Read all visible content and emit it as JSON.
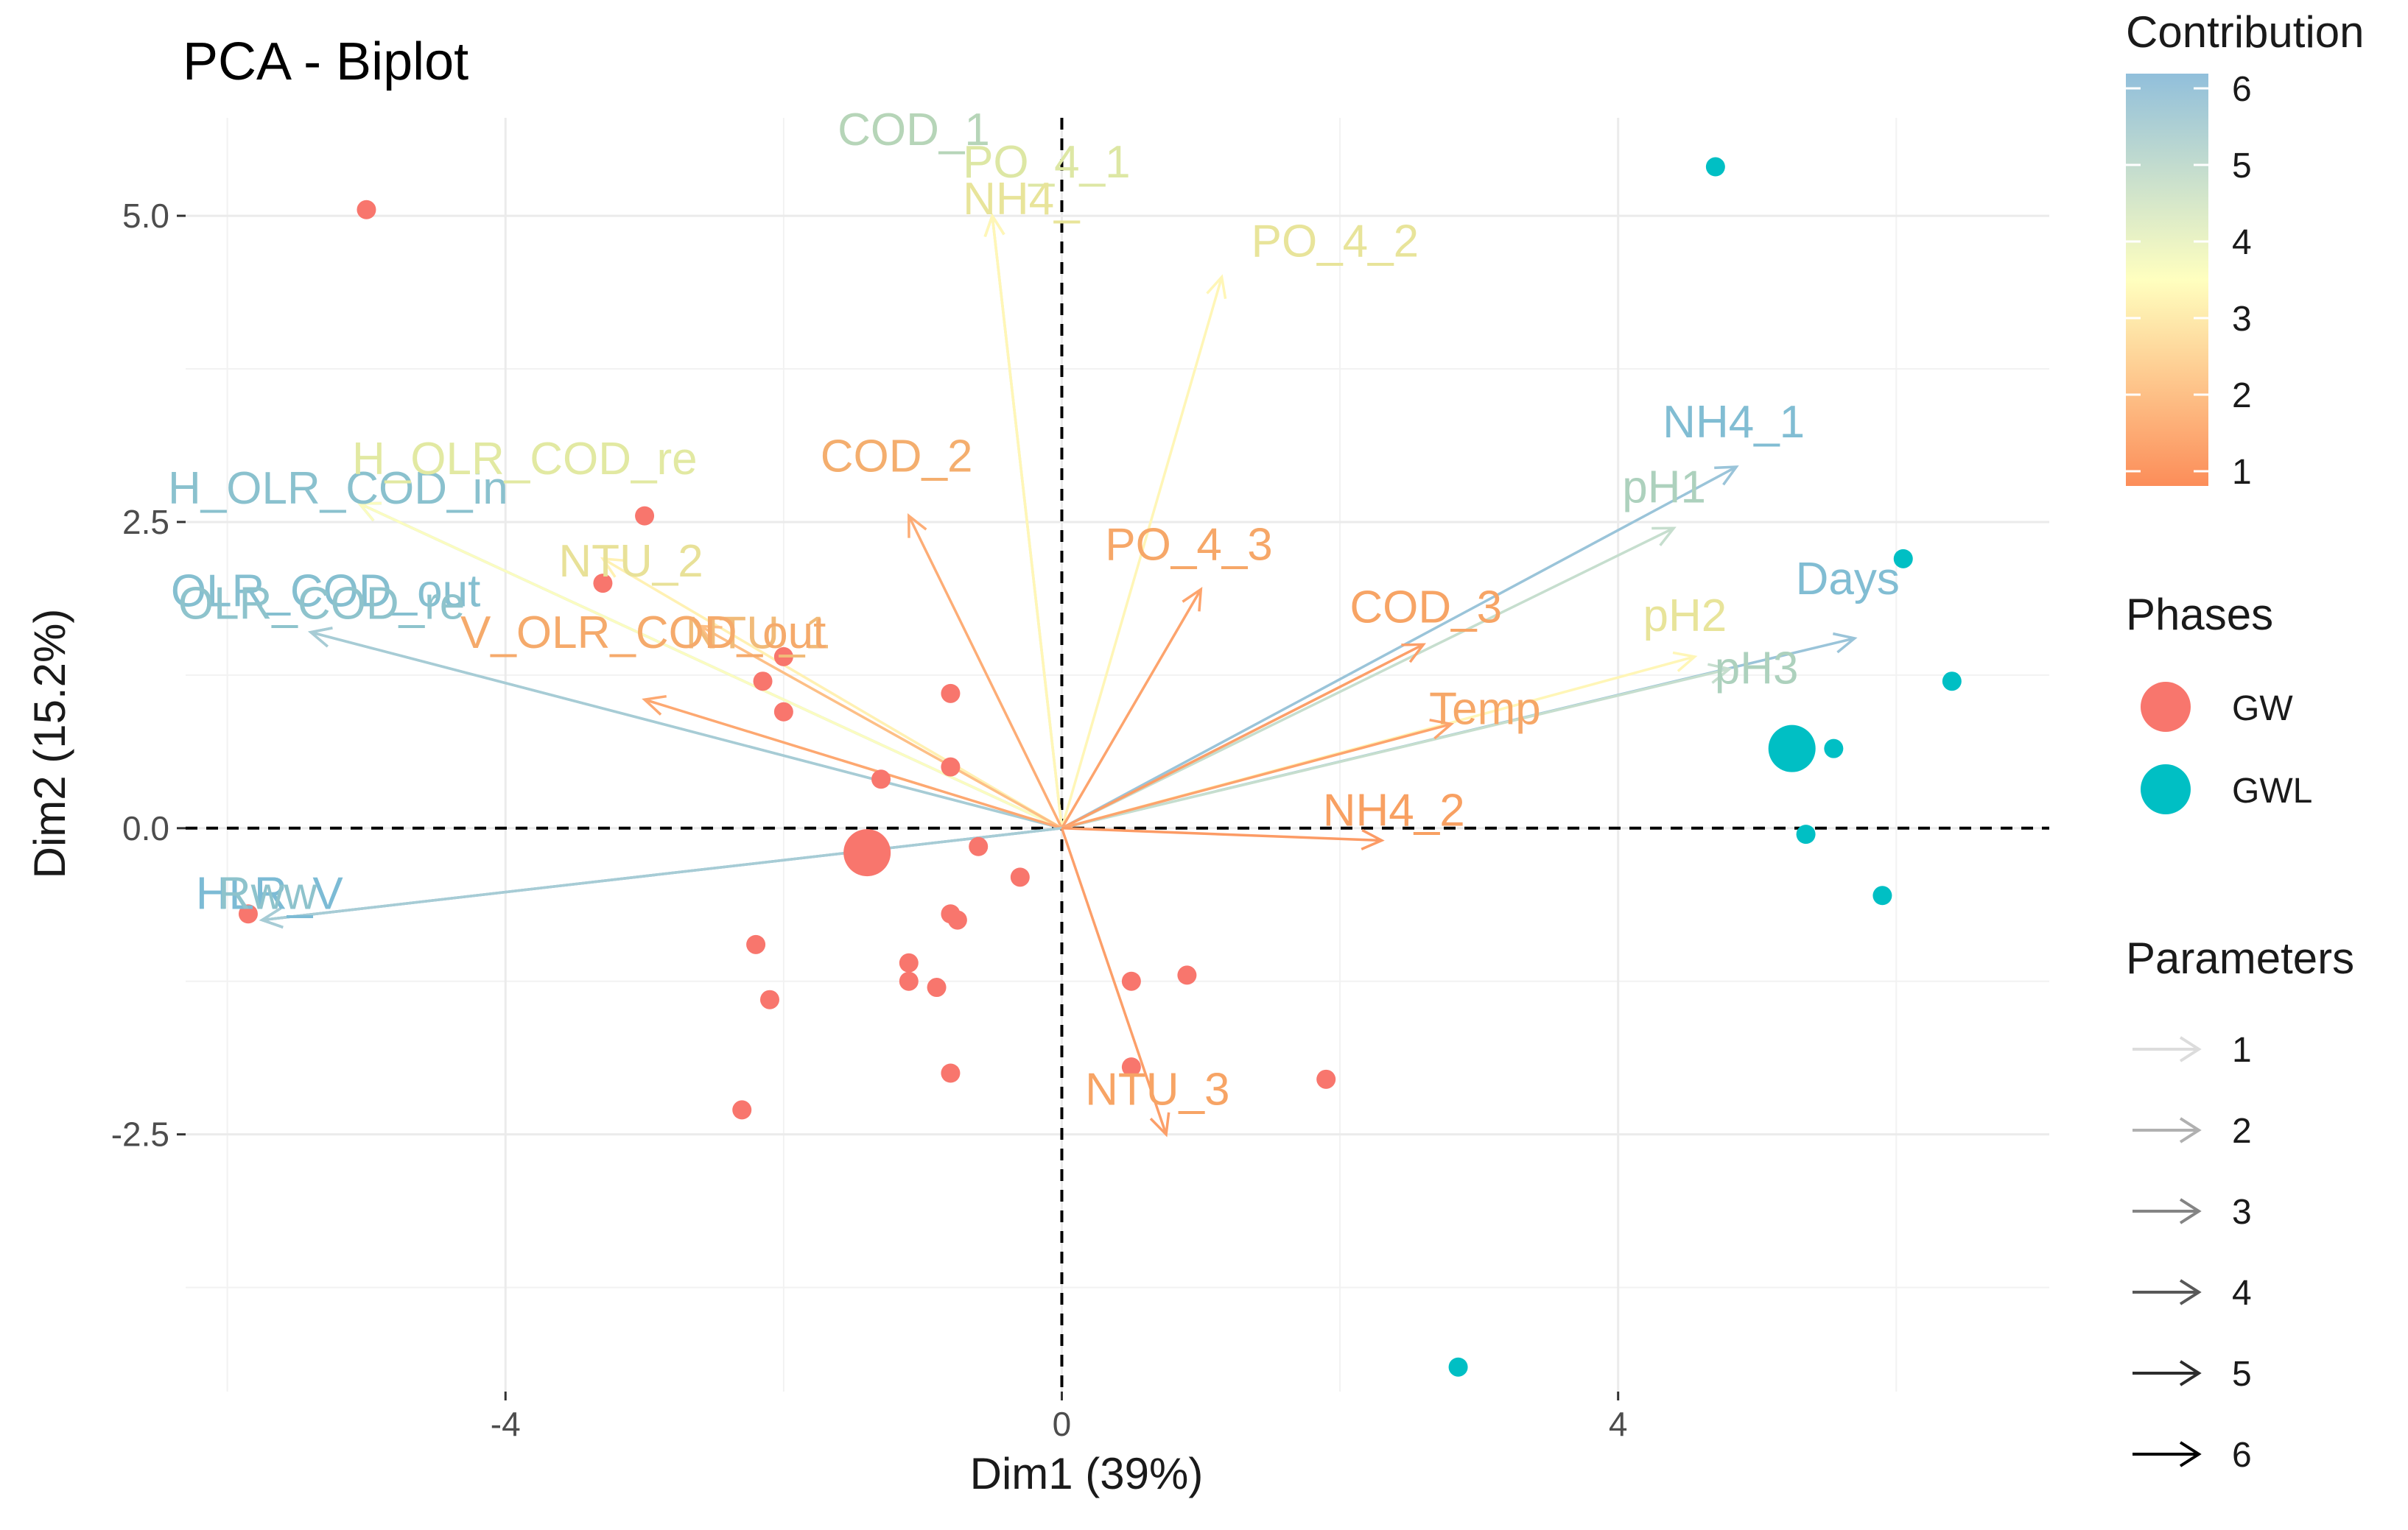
{
  "chart_data": {
    "type": "scatter",
    "subtype": "pca-biplot",
    "title": "PCA - Biplot",
    "xlabel": "Dim1 (39%)",
    "ylabel": "Dim2 (15.2%)",
    "xlim": [
      -6.3,
      7.1
    ],
    "ylim": [
      -4.6,
      5.8
    ],
    "x_ticks": [
      -4,
      0,
      4
    ],
    "x_tick_labels": [
      "-4",
      "0",
      "4"
    ],
    "y_ticks": [
      -2.5,
      0,
      2.5,
      5
    ],
    "y_tick_labels": [
      "-2.5",
      "0.0",
      "2.5",
      "5.0"
    ],
    "grid": true,
    "reference_lines": [
      "x=0 dashed",
      "y=0 dashed"
    ],
    "colors": {
      "GW": "#f8766d",
      "GWL": "#00bfc4",
      "contribution_low": "#fc8d59",
      "contribution_mid": "#ffffbf",
      "contribution_high": "#91bfdb"
    },
    "groups": [
      {
        "name": "GW",
        "color": "#f8766d",
        "centroid": [
          -1.4,
          -0.2
        ],
        "points": [
          [
            -5.0,
            5.05
          ],
          [
            -3.0,
            2.55
          ],
          [
            -3.3,
            2.0
          ],
          [
            -2.0,
            1.4
          ],
          [
            -2.15,
            1.2
          ],
          [
            -2.0,
            0.95
          ],
          [
            -0.8,
            1.1
          ],
          [
            -1.3,
            0.4
          ],
          [
            -0.8,
            0.5
          ],
          [
            -0.6,
            -0.15
          ],
          [
            -0.3,
            -0.4
          ],
          [
            -0.8,
            -0.7
          ],
          [
            -0.75,
            -0.75
          ],
          [
            -1.1,
            -1.1
          ],
          [
            -1.1,
            -1.25
          ],
          [
            -0.9,
            -1.3
          ],
          [
            -2.2,
            -0.95
          ],
          [
            -2.1,
            -1.4
          ],
          [
            -0.8,
            -2.0
          ],
          [
            -2.3,
            -2.3
          ],
          [
            0.5,
            -1.25
          ],
          [
            0.9,
            -1.2
          ],
          [
            0.5,
            -1.95
          ],
          [
            1.9,
            -2.05
          ],
          [
            -5.85,
            -0.7
          ]
        ]
      },
      {
        "name": "GWL",
        "color": "#00bfc4",
        "centroid": [
          5.25,
          0.65
        ],
        "points": [
          [
            4.7,
            5.4
          ],
          [
            6.05,
            2.2
          ],
          [
            6.4,
            1.2
          ],
          [
            5.55,
            0.65
          ],
          [
            5.35,
            -0.05
          ],
          [
            5.9,
            -0.55
          ],
          [
            2.85,
            -4.4
          ]
        ]
      }
    ],
    "variables": [
      {
        "name": "COD_1",
        "x": -0.5,
        "y": 5.0,
        "contribution": 4.6
      },
      {
        "name": "PO_4_1",
        "x": -0.5,
        "y": 5.0,
        "contribution": 3.7
      },
      {
        "name": "NH4_",
        "x": -0.5,
        "y": 5.0,
        "contribution": 3.3
      },
      {
        "name": "PO_4_2",
        "x": 1.15,
        "y": 4.5,
        "contribution": 3.3
      },
      {
        "name": "H_OLR_COD_in",
        "x": -5.05,
        "y": 2.65,
        "contribution": 5.6
      },
      {
        "name": "H_OLR_COD_re",
        "x": -5.05,
        "y": 2.65,
        "contribution": 3.6
      },
      {
        "name": "COD_2",
        "x": -1.1,
        "y": 2.55,
        "contribution": 1.7
      },
      {
        "name": "NTU_2",
        "x": -3.3,
        "y": 2.2,
        "contribution": 3.2
      },
      {
        "name": "OLR_COD_out",
        "x": -5.4,
        "y": 1.6,
        "contribution": 5.7
      },
      {
        "name": "OLR_COD_re",
        "x": -5.4,
        "y": 1.6,
        "contribution": 5.5
      },
      {
        "name": "NTU_1",
        "x": -2.6,
        "y": 1.65,
        "contribution": 2.1
      },
      {
        "name": "V_OLR_COD_out",
        "x": -3.0,
        "y": 1.05,
        "contribution": 1.6
      },
      {
        "name": "PO_4_3",
        "x": 1.0,
        "y": 1.95,
        "contribution": 1.5
      },
      {
        "name": "NH4_1",
        "x": 4.85,
        "y": 2.95,
        "contribution": 5.8
      },
      {
        "name": "pH1",
        "x": 4.4,
        "y": 2.45,
        "contribution": 4.8
      },
      {
        "name": "COD_3",
        "x": 2.6,
        "y": 1.5,
        "contribution": 1.4
      },
      {
        "name": "Days",
        "x": 5.7,
        "y": 1.55,
        "contribution": 5.8
      },
      {
        "name": "pH2",
        "x": 4.55,
        "y": 1.4,
        "contribution": 3.3
      },
      {
        "name": "pH3",
        "x": 4.8,
        "y": 1.3,
        "contribution": 4.8
      },
      {
        "name": "Temp",
        "x": 2.8,
        "y": 0.85,
        "contribution": 1.5
      },
      {
        "name": "NH4_2",
        "x": 2.3,
        "y": -0.1,
        "contribution": 1.3
      },
      {
        "name": "HLR",
        "x": -5.75,
        "y": -0.75,
        "contribution": 5.8
      },
      {
        "name": "HLR_V",
        "x": -5.75,
        "y": -0.75,
        "contribution": 5.9
      },
      {
        "name": "Rww",
        "x": -5.75,
        "y": -0.75,
        "contribution": 5.5
      },
      {
        "name": "NTU_3",
        "x": 0.75,
        "y": -2.5,
        "contribution": 1.4
      }
    ],
    "legend": {
      "placement": "right",
      "contribution_title": "Contribution",
      "contribution_ticks": [
        "6",
        "5",
        "4",
        "3",
        "2",
        "1"
      ],
      "phases_title": "Phases",
      "phases": [
        "GW",
        "GWL"
      ],
      "parameters_title": "Parameters",
      "parameters": [
        "1",
        "2",
        "3",
        "4",
        "5",
        "6"
      ]
    }
  }
}
